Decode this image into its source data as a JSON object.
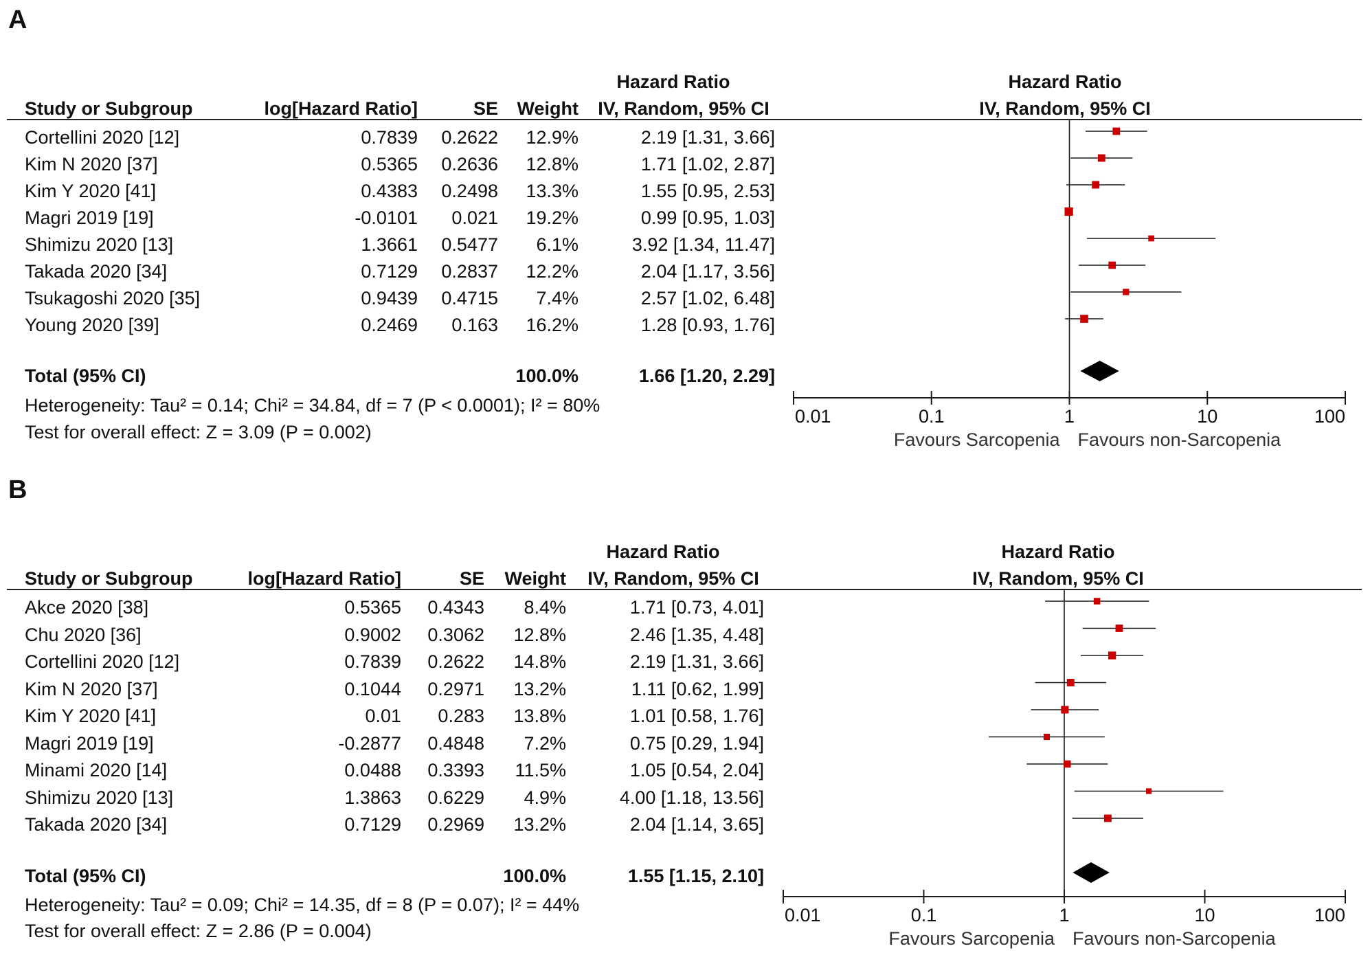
{
  "chart_data": [
    {
      "type": "forest",
      "panel": "A",
      "headers": {
        "study": "Study or Subgroup",
        "loghr": "log[Hazard Ratio]",
        "se": "SE",
        "weight": "Weight",
        "hr_top": "Hazard Ratio",
        "hr_sub": "IV, Random, 95% CI",
        "plot_top": "Hazard Ratio",
        "plot_sub": "IV, Random, 95% CI"
      },
      "studies": [
        {
          "name": "Cortellini 2020 [12]",
          "loghr": "0.7839",
          "se": "0.2622",
          "weight": "12.9%",
          "ci_text": "2.19 [1.31, 3.66]",
          "hr": 2.19,
          "lo": 1.31,
          "hi": 3.66,
          "w": 12.9
        },
        {
          "name": "Kim N 2020 [37]",
          "loghr": "0.5365",
          "se": "0.2636",
          "weight": "12.8%",
          "ci_text": "1.71 [1.02, 2.87]",
          "hr": 1.71,
          "lo": 1.02,
          "hi": 2.87,
          "w": 12.8
        },
        {
          "name": "Kim Y 2020 [41]",
          "loghr": "0.4383",
          "se": "0.2498",
          "weight": "13.3%",
          "ci_text": "1.55 [0.95, 2.53]",
          "hr": 1.55,
          "lo": 0.95,
          "hi": 2.53,
          "w": 13.3
        },
        {
          "name": "Magri 2019 [19]",
          "loghr": "-0.0101",
          "se": "0.021",
          "weight": "19.2%",
          "ci_text": "0.99 [0.95, 1.03]",
          "hr": 0.99,
          "lo": 0.95,
          "hi": 1.03,
          "w": 19.2
        },
        {
          "name": "Shimizu 2020 [13]",
          "loghr": "1.3661",
          "se": "0.5477",
          "weight": "6.1%",
          "ci_text": "3.92 [1.34, 11.47]",
          "hr": 3.92,
          "lo": 1.34,
          "hi": 11.47,
          "w": 6.1
        },
        {
          "name": "Takada 2020 [34]",
          "loghr": "0.7129",
          "se": "0.2837",
          "weight": "12.2%",
          "ci_text": "2.04 [1.17, 3.56]",
          "hr": 2.04,
          "lo": 1.17,
          "hi": 3.56,
          "w": 12.2
        },
        {
          "name": "Tsukagoshi 2020 [35]",
          "loghr": "0.9439",
          "se": "0.4715",
          "weight": "7.4%",
          "ci_text": "2.57 [1.02, 6.48]",
          "hr": 2.57,
          "lo": 1.02,
          "hi": 6.48,
          "w": 7.4
        },
        {
          "name": "Young 2020 [39]",
          "loghr": "0.2469",
          "se": "0.163",
          "weight": "16.2%",
          "ci_text": "1.28 [0.93, 1.76]",
          "hr": 1.28,
          "lo": 0.93,
          "hi": 1.76,
          "w": 16.2
        }
      ],
      "total": {
        "label": "Total (95% CI)",
        "weight": "100.0%",
        "ci_text": "1.66 [1.20, 2.29]",
        "hr": 1.66,
        "lo": 1.2,
        "hi": 2.29
      },
      "heterogeneity": "Heterogeneity: Tau² = 0.14; Chi² = 34.84, df = 7 (P < 0.0001); I² = 80%",
      "overall_effect": "Test for overall effect: Z = 3.09 (P = 0.002)",
      "x_axis": {
        "scale": "log",
        "range": [
          0.01,
          100
        ],
        "ticks": [
          0.01,
          0.1,
          1,
          10,
          100
        ],
        "tick_labels": [
          "0.01",
          "0.1",
          "1",
          "10",
          "100"
        ]
      },
      "favours_left": "Favours Sarcopenia",
      "favours_right": "Favours non-Sarcopenia"
    },
    {
      "type": "forest",
      "panel": "B",
      "headers": {
        "study": "Study or Subgroup",
        "loghr": "log[Hazard Ratio]",
        "se": "SE",
        "weight": "Weight",
        "hr_top": "Hazard Ratio",
        "hr_sub": "IV, Random, 95% CI",
        "plot_top": "Hazard Ratio",
        "plot_sub": "IV, Random, 95% CI"
      },
      "studies": [
        {
          "name": "Akce 2020 [38]",
          "loghr": "0.5365",
          "se": "0.4343",
          "weight": "8.4%",
          "ci_text": "1.71 [0.73, 4.01]",
          "hr": 1.71,
          "lo": 0.73,
          "hi": 4.01,
          "w": 8.4
        },
        {
          "name": "Chu 2020 [36]",
          "loghr": "0.9002",
          "se": "0.3062",
          "weight": "12.8%",
          "ci_text": "2.46 [1.35, 4.48]",
          "hr": 2.46,
          "lo": 1.35,
          "hi": 4.48,
          "w": 12.8
        },
        {
          "name": "Cortellini 2020 [12]",
          "loghr": "0.7839",
          "se": "0.2622",
          "weight": "14.8%",
          "ci_text": "2.19 [1.31, 3.66]",
          "hr": 2.19,
          "lo": 1.31,
          "hi": 3.66,
          "w": 14.8
        },
        {
          "name": "Kim N 2020 [37]",
          "loghr": "0.1044",
          "se": "0.2971",
          "weight": "13.2%",
          "ci_text": "1.11 [0.62, 1.99]",
          "hr": 1.11,
          "lo": 0.62,
          "hi": 1.99,
          "w": 13.2
        },
        {
          "name": "Kim Y 2020 [41]",
          "loghr": "0.01",
          "se": "0.283",
          "weight": "13.8%",
          "ci_text": "1.01 [0.58, 1.76]",
          "hr": 1.01,
          "lo": 0.58,
          "hi": 1.76,
          "w": 13.8
        },
        {
          "name": "Magri 2019 [19]",
          "loghr": "-0.2877",
          "se": "0.4848",
          "weight": "7.2%",
          "ci_text": "0.75 [0.29, 1.94]",
          "hr": 0.75,
          "lo": 0.29,
          "hi": 1.94,
          "w": 7.2
        },
        {
          "name": "Minami 2020 [14]",
          "loghr": "0.0488",
          "se": "0.3393",
          "weight": "11.5%",
          "ci_text": "1.05 [0.54, 2.04]",
          "hr": 1.05,
          "lo": 0.54,
          "hi": 2.04,
          "w": 11.5
        },
        {
          "name": "Shimizu 2020 [13]",
          "loghr": "1.3863",
          "se": "0.6229",
          "weight": "4.9%",
          "ci_text": "4.00 [1.18, 13.56]",
          "hr": 4.0,
          "lo": 1.18,
          "hi": 13.56,
          "w": 4.9
        },
        {
          "name": "Takada 2020 [34]",
          "loghr": "0.7129",
          "se": "0.2969",
          "weight": "13.2%",
          "ci_text": "2.04 [1.14, 3.65]",
          "hr": 2.04,
          "lo": 1.14,
          "hi": 3.65,
          "w": 13.2
        }
      ],
      "total": {
        "label": "Total (95% CI)",
        "weight": "100.0%",
        "ci_text": "1.55 [1.15, 2.10]",
        "hr": 1.55,
        "lo": 1.15,
        "hi": 2.1
      },
      "heterogeneity": "Heterogeneity: Tau² = 0.09; Chi² = 14.35, df = 8 (P = 0.07); I² = 44%",
      "overall_effect": "Test for overall effect: Z = 2.86 (P = 0.004)",
      "x_axis": {
        "scale": "log",
        "range": [
          0.01,
          100
        ],
        "ticks": [
          0.01,
          0.1,
          1,
          10,
          100
        ],
        "tick_labels": [
          "0.01",
          "0.1",
          "1",
          "10",
          "100"
        ]
      },
      "favours_left": "Favours Sarcopenia",
      "favours_right": "Favours non-Sarcopenia"
    }
  ],
  "panels": {
    "a_label": "A",
    "b_label": "B"
  },
  "colors": {
    "square": "#cc0000",
    "line": "#1a1a1a",
    "diamond": "#000000",
    "text": "#111111"
  }
}
